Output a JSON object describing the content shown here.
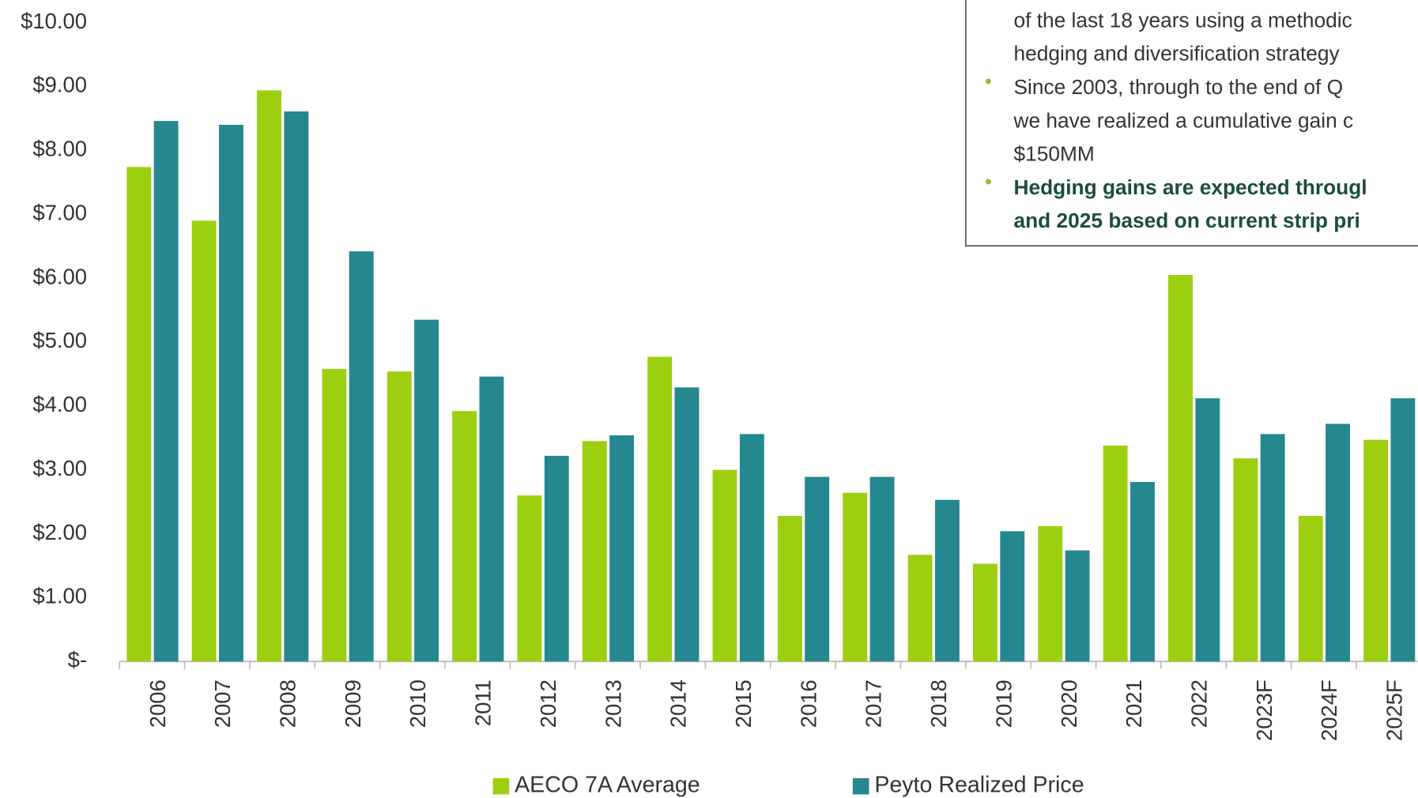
{
  "chart_data": {
    "type": "bar",
    "categories": [
      "2006",
      "2007",
      "2008",
      "2009",
      "2010",
      "2011",
      "2012",
      "2013",
      "2014",
      "2015",
      "2016",
      "2017",
      "2018",
      "2019",
      "2020",
      "2021",
      "2022",
      "2023F",
      "2024F",
      "2025F"
    ],
    "series": [
      {
        "name": "AECO 7A Average",
        "color": "#9dcf11",
        "values": [
          7.74,
          6.9,
          8.94,
          4.58,
          4.54,
          3.92,
          2.6,
          3.45,
          4.77,
          3.0,
          2.28,
          2.64,
          1.67,
          1.53,
          2.12,
          3.38,
          6.05,
          3.18,
          2.28,
          3.47
        ]
      },
      {
        "name": "Peyto Realized Price",
        "color": "#25878f",
        "values": [
          8.46,
          8.4,
          8.61,
          6.42,
          5.35,
          4.46,
          3.22,
          3.54,
          4.29,
          3.56,
          2.89,
          2.89,
          2.53,
          2.04,
          1.74,
          2.81,
          4.12,
          3.56,
          3.72,
          4.12
        ]
      }
    ],
    "ylim": [
      0,
      10
    ],
    "yticks": [
      {
        "value": 0,
        "label": "$-"
      },
      {
        "value": 1,
        "label": "$1.00"
      },
      {
        "value": 2,
        "label": "$2.00"
      },
      {
        "value": 3,
        "label": "$3.00"
      },
      {
        "value": 4,
        "label": "$4.00"
      },
      {
        "value": 5,
        "label": "$5.00"
      },
      {
        "value": 6,
        "label": "$6.00"
      },
      {
        "value": 7,
        "label": "$7.00"
      },
      {
        "value": 8,
        "label": "$8.00"
      },
      {
        "value": 9,
        "label": "$9.00"
      },
      {
        "value": 10,
        "label": "$10.00"
      }
    ],
    "annotation": {
      "bullets": [
        {
          "lines": [
            "of the last 18 years using a methodic",
            "hedging and diversification strategy"
          ],
          "bold": false
        },
        {
          "lines": [
            "Since 2003, through to the end of Q",
            "we have realized a cumulative gain c",
            "$150MM"
          ],
          "bold": false
        },
        {
          "lines": [
            "Hedging gains are expected througl",
            "and 2025 based on current strip pri"
          ],
          "bold": true
        }
      ]
    }
  }
}
